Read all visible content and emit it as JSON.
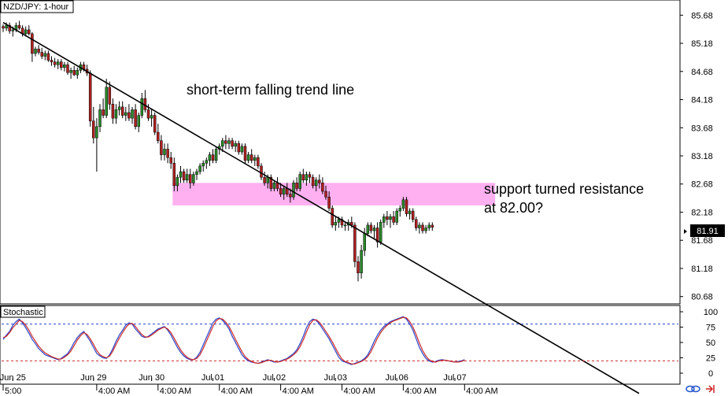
{
  "chart_data": [
    {
      "type": "candlestick",
      "title": "NZD/JPY: 1-hour",
      "ylim": [
        80.55,
        85.95
      ],
      "y_ticks": [
        "85.68",
        "85.18",
        "84.68",
        "84.18",
        "83.68",
        "83.18",
        "82.68",
        "82.18",
        "81.68",
        "81.18",
        "80.68"
      ],
      "current_price_label": "81.91",
      "current_price": 81.91,
      "annotations": [
        {
          "text": "short-term falling trend line"
        },
        {
          "text": "support turned resistance"
        },
        {
          "text": "at 82.00?"
        }
      ],
      "trend_line": {
        "start": {
          "bar": 0,
          "y": 85.55
        },
        "end": {
          "bar": 148,
          "y": 80.6
        }
      },
      "resistance_zone": {
        "y_low": 82.3,
        "y_high": 82.7,
        "start_bar": 53,
        "end_bar": 152,
        "color": "#ffb0f0"
      },
      "colors": {
        "up": "#2a8a2a",
        "down": "#b02020"
      },
      "candles": [
        [
          85.48,
          85.52,
          85.38,
          85.45
        ],
        [
          85.45,
          85.55,
          85.4,
          85.5
        ],
        [
          85.5,
          85.55,
          85.35,
          85.4
        ],
        [
          85.4,
          85.48,
          85.3,
          85.42
        ],
        [
          85.42,
          85.55,
          85.38,
          85.5
        ],
        [
          85.5,
          85.58,
          85.42,
          85.45
        ],
        [
          85.45,
          85.5,
          85.3,
          85.35
        ],
        [
          85.35,
          85.48,
          85.3,
          85.42
        ],
        [
          85.42,
          85.5,
          85.32,
          85.35
        ],
        [
          85.35,
          85.38,
          84.85,
          85.0
        ],
        [
          85.0,
          85.12,
          84.95,
          85.08
        ],
        [
          85.08,
          85.15,
          84.98,
          85.02
        ],
        [
          85.02,
          85.1,
          84.9,
          84.95
        ],
        [
          84.95,
          85.05,
          84.88,
          85.0
        ],
        [
          85.0,
          85.05,
          84.85,
          84.88
        ],
        [
          84.88,
          84.95,
          84.78,
          84.85
        ],
        [
          84.85,
          84.92,
          84.75,
          84.8
        ],
        [
          84.8,
          84.9,
          84.72,
          84.85
        ],
        [
          84.85,
          84.9,
          84.7,
          84.75
        ],
        [
          84.75,
          84.85,
          84.68,
          84.8
        ],
        [
          84.8,
          84.85,
          84.62,
          84.66
        ],
        [
          84.66,
          84.75,
          84.55,
          84.7
        ],
        [
          84.7,
          84.78,
          84.6,
          84.62
        ],
        [
          84.62,
          84.75,
          84.55,
          84.7
        ],
        [
          84.7,
          84.85,
          84.65,
          84.8
        ],
        [
          84.8,
          84.85,
          84.68,
          84.72
        ],
        [
          84.72,
          84.8,
          84.6,
          84.65
        ],
        [
          84.65,
          84.7,
          83.7,
          83.8
        ],
        [
          83.8,
          84.05,
          83.4,
          83.5
        ],
        [
          83.5,
          83.85,
          82.9,
          83.7
        ],
        [
          83.7,
          84.1,
          83.6,
          84.0
        ],
        [
          84.0,
          84.2,
          83.85,
          83.9
        ],
        [
          83.9,
          84.55,
          83.85,
          84.4
        ],
        [
          84.4,
          84.5,
          84.0,
          84.1
        ],
        [
          84.1,
          84.2,
          83.75,
          83.85
        ],
        [
          83.85,
          84.1,
          83.75,
          84.0
        ],
        [
          84.0,
          84.15,
          83.9,
          84.05
        ],
        [
          84.05,
          84.15,
          83.85,
          83.9
        ],
        [
          83.9,
          84.05,
          83.8,
          83.95
        ],
        [
          83.95,
          84.1,
          83.8,
          83.85
        ],
        [
          83.85,
          84.05,
          83.75,
          84.0
        ],
        [
          84.0,
          84.1,
          83.65,
          83.7
        ],
        [
          83.7,
          83.95,
          83.6,
          83.9
        ],
        [
          83.9,
          84.3,
          83.85,
          84.2
        ],
        [
          84.2,
          84.35,
          83.95,
          84.0
        ],
        [
          84.0,
          84.1,
          83.8,
          83.85
        ],
        [
          83.85,
          84.0,
          83.7,
          83.9
        ],
        [
          83.9,
          83.95,
          83.55,
          83.6
        ],
        [
          83.6,
          83.75,
          83.4,
          83.45
        ],
        [
          83.45,
          83.55,
          83.1,
          83.2
        ],
        [
          83.2,
          83.4,
          83.1,
          83.3
        ],
        [
          83.3,
          83.4,
          83.05,
          83.15
        ],
        [
          83.15,
          83.25,
          82.95,
          83.05
        ],
        [
          83.05,
          83.15,
          82.55,
          82.65
        ],
        [
          82.65,
          82.85,
          82.55,
          82.8
        ],
        [
          82.8,
          83.0,
          82.7,
          82.9
        ],
        [
          82.9,
          82.95,
          82.7,
          82.75
        ],
        [
          82.75,
          82.95,
          82.7,
          82.85
        ],
        [
          82.85,
          82.95,
          82.6,
          82.7
        ],
        [
          82.7,
          82.9,
          82.65,
          82.85
        ],
        [
          82.85,
          82.95,
          82.75,
          82.9
        ],
        [
          82.9,
          83.05,
          82.85,
          83.0
        ],
        [
          83.0,
          83.1,
          82.9,
          83.05
        ],
        [
          83.05,
          83.15,
          82.95,
          83.1
        ],
        [
          83.1,
          83.25,
          83.0,
          83.2
        ],
        [
          83.2,
          83.3,
          83.05,
          83.1
        ],
        [
          83.1,
          83.35,
          83.05,
          83.3
        ],
        [
          83.3,
          83.4,
          83.2,
          83.35
        ],
        [
          83.35,
          83.5,
          83.25,
          83.45
        ],
        [
          83.45,
          83.55,
          83.3,
          83.4
        ],
        [
          83.4,
          83.5,
          83.3,
          83.45
        ],
        [
          83.45,
          83.5,
          83.3,
          83.35
        ],
        [
          83.35,
          83.45,
          83.25,
          83.4
        ],
        [
          83.4,
          83.45,
          83.2,
          83.25
        ],
        [
          83.25,
          83.4,
          83.2,
          83.35
        ],
        [
          83.35,
          83.4,
          83.05,
          83.1
        ],
        [
          83.1,
          83.25,
          83.05,
          83.2
        ],
        [
          83.2,
          83.3,
          83.05,
          83.1
        ],
        [
          83.1,
          83.2,
          83.0,
          83.15
        ],
        [
          83.15,
          83.2,
          82.95,
          83.0
        ],
        [
          83.0,
          83.05,
          82.75,
          82.8
        ],
        [
          82.8,
          82.9,
          82.65,
          82.7
        ],
        [
          82.7,
          82.85,
          82.6,
          82.8
        ],
        [
          82.8,
          82.85,
          82.55,
          82.6
        ],
        [
          82.6,
          82.75,
          82.55,
          82.7
        ],
        [
          82.7,
          82.8,
          82.55,
          82.6
        ],
        [
          82.6,
          82.7,
          82.45,
          82.5
        ],
        [
          82.5,
          82.65,
          82.4,
          82.6
        ],
        [
          82.6,
          82.7,
          82.45,
          82.5
        ],
        [
          82.5,
          82.6,
          82.35,
          82.45
        ],
        [
          82.45,
          82.75,
          82.4,
          82.7
        ],
        [
          82.7,
          82.8,
          82.55,
          82.6
        ],
        [
          82.6,
          82.9,
          82.55,
          82.85
        ],
        [
          82.85,
          82.95,
          82.7,
          82.75
        ],
        [
          82.75,
          82.9,
          82.65,
          82.85
        ],
        [
          82.85,
          82.9,
          82.7,
          82.8
        ],
        [
          82.8,
          82.85,
          82.6,
          82.65
        ],
        [
          82.65,
          82.8,
          82.55,
          82.75
        ],
        [
          82.75,
          82.85,
          82.6,
          82.7
        ],
        [
          82.7,
          82.8,
          82.5,
          82.55
        ],
        [
          82.55,
          82.65,
          82.4,
          82.45
        ],
        [
          82.45,
          82.55,
          82.2,
          82.25
        ],
        [
          82.25,
          82.3,
          81.9,
          81.95
        ],
        [
          81.95,
          82.1,
          81.85,
          82.0
        ],
        [
          82.0,
          82.1,
          81.9,
          82.05
        ],
        [
          82.05,
          82.1,
          81.9,
          81.95
        ],
        [
          81.95,
          82.0,
          81.85,
          81.95
        ],
        [
          81.95,
          82.05,
          81.85,
          82.0
        ],
        [
          82.0,
          82.1,
          81.9,
          81.95
        ],
        [
          81.95,
          82.0,
          81.2,
          81.3
        ],
        [
          81.3,
          81.4,
          80.95,
          81.1
        ],
        [
          81.1,
          81.6,
          81.0,
          81.5
        ],
        [
          81.5,
          81.9,
          81.4,
          81.8
        ],
        [
          81.8,
          82.0,
          81.75,
          81.95
        ],
        [
          81.95,
          82.0,
          81.8,
          81.85
        ],
        [
          81.85,
          81.95,
          81.7,
          81.9
        ],
        [
          81.9,
          82.0,
          81.55,
          81.65
        ],
        [
          81.65,
          82.05,
          81.6,
          82.0
        ],
        [
          82.0,
          82.15,
          81.9,
          82.1
        ],
        [
          82.1,
          82.2,
          81.95,
          82.05
        ],
        [
          82.05,
          82.15,
          81.9,
          82.1
        ],
        [
          82.1,
          82.2,
          81.95,
          82.0
        ],
        [
          82.0,
          82.25,
          81.95,
          82.2
        ],
        [
          82.2,
          82.3,
          82.1,
          82.25
        ],
        [
          82.25,
          82.45,
          82.2,
          82.4
        ],
        [
          82.4,
          82.45,
          82.1,
          82.15
        ],
        [
          82.15,
          82.25,
          82.05,
          82.2
        ],
        [
          82.2,
          82.25,
          82.0,
          82.05
        ],
        [
          82.05,
          82.1,
          81.85,
          81.9
        ],
        [
          81.9,
          82.0,
          81.8,
          81.95
        ],
        [
          81.95,
          82.0,
          81.8,
          81.85
        ],
        [
          81.85,
          81.95,
          81.8,
          81.9
        ],
        [
          81.9,
          82.0,
          81.85,
          81.95
        ],
        [
          81.95,
          82.0,
          81.85,
          81.91
        ]
      ],
      "x_labels": [
        {
          "text": "Jun 25",
          "bar": 3
        },
        {
          "text": "Jun 29",
          "bar": 28
        },
        {
          "text": "Jun 30",
          "bar": 46
        },
        {
          "text": "Jul 01",
          "bar": 65
        },
        {
          "text": "Jul 02",
          "bar": 84
        },
        {
          "text": "Jul 03",
          "bar": 103
        },
        {
          "text": "Jul 06",
          "bar": 122
        },
        {
          "text": "Jul 07",
          "bar": 140
        }
      ]
    },
    {
      "type": "line",
      "title": "Stochastic",
      "ylim": [
        0,
        100
      ],
      "y_ticks": [
        "100",
        "75",
        "50",
        "25",
        "0"
      ],
      "levels": [
        80,
        20
      ],
      "series": [
        {
          "color": "#2a44cc",
          "values": [
            55,
            62,
            68,
            78,
            84,
            88,
            82,
            74,
            65,
            55,
            48,
            40,
            35,
            30,
            28,
            26,
            24,
            22,
            24,
            28,
            32,
            40,
            50,
            58,
            64,
            68,
            60,
            52,
            42,
            32,
            28,
            25,
            24,
            30,
            40,
            52,
            62,
            70,
            78,
            82,
            80,
            72,
            66,
            60,
            58,
            60,
            64,
            68,
            72,
            74,
            76,
            70,
            62,
            52,
            42,
            34,
            28,
            24,
            22,
            22,
            26,
            34,
            46,
            58,
            70,
            82,
            88,
            90,
            86,
            80,
            72,
            60,
            50,
            40,
            30,
            24,
            20,
            18,
            17,
            16,
            18,
            20,
            22,
            20,
            18,
            18,
            20,
            22,
            24,
            28,
            32,
            38,
            48,
            60,
            74,
            84,
            88,
            86,
            80,
            72,
            64,
            56,
            46,
            36,
            26,
            20,
            18,
            16,
            14,
            16,
            18,
            20,
            24,
            30,
            40,
            52,
            62,
            70,
            76,
            80,
            84,
            86,
            88,
            90,
            92,
            88,
            80,
            70,
            56,
            42,
            32,
            24,
            20,
            18,
            19,
            21,
            22,
            21,
            20,
            19,
            18,
            19,
            20,
            22
          ]
        },
        {
          "color": "#cc2a2a",
          "values": [
            58,
            60,
            66,
            74,
            80,
            86,
            84,
            78,
            70,
            60,
            52,
            44,
            38,
            33,
            30,
            27,
            25,
            23,
            23,
            26,
            30,
            36,
            45,
            54,
            61,
            66,
            63,
            56,
            47,
            37,
            30,
            27,
            25,
            28,
            36,
            47,
            57,
            66,
            74,
            80,
            81,
            76,
            69,
            63,
            59,
            59,
            62,
            66,
            70,
            73,
            75,
            72,
            66,
            57,
            47,
            38,
            31,
            26,
            23,
            22,
            24,
            30,
            40,
            52,
            64,
            76,
            85,
            89,
            88,
            83,
            76,
            66,
            55,
            45,
            35,
            27,
            22,
            19,
            17,
            16,
            17,
            19,
            21,
            21,
            19,
            18,
            19,
            21,
            23,
            26,
            30,
            35,
            43,
            54,
            67,
            79,
            86,
            87,
            83,
            76,
            68,
            60,
            51,
            41,
            31,
            23,
            19,
            17,
            15,
            15,
            17,
            19,
            22,
            27,
            35,
            46,
            57,
            66,
            73,
            78,
            82,
            85,
            87,
            89,
            91,
            90,
            84,
            75,
            63,
            49,
            37,
            28,
            22,
            19,
            18,
            20,
            21,
            21,
            20,
            19,
            18,
            18,
            19,
            21
          ]
        }
      ],
      "x_labels": [
        {
          "text": "5:00",
          "bar": -1
        },
        {
          "text": "4:00 AM",
          "bar": 29
        },
        {
          "text": "4:00 AM",
          "bar": 48
        },
        {
          "text": "4:00 AM",
          "bar": 67
        },
        {
          "text": "4:00 AM",
          "bar": 86
        },
        {
          "text": "4:00 AM",
          "bar": 105
        },
        {
          "text": "4:00 AM",
          "bar": 124
        },
        {
          "text": "4:00 AM",
          "bar": 143
        }
      ]
    }
  ]
}
